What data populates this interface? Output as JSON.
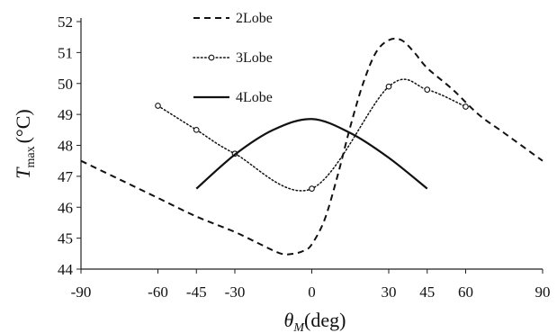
{
  "chart_data": {
    "type": "line",
    "xlim": [
      -90,
      90
    ],
    "ylim": [
      44,
      52
    ],
    "x_ticks": [
      -90,
      -60,
      -45,
      -30,
      0,
      30,
      45,
      60,
      90
    ],
    "x_tick_labels": [
      "-90",
      "-60",
      "-45",
      "-30",
      "0",
      "30",
      "45",
      "60",
      "90"
    ],
    "y_ticks": [
      44,
      45,
      46,
      47,
      48,
      49,
      50,
      51,
      52
    ],
    "y_tick_labels": [
      "44",
      "45",
      "46",
      "47",
      "48",
      "49",
      "50",
      "51",
      "52"
    ],
    "ylabel": {
      "main": "T",
      "sub": "max",
      "unit": "(°C)"
    },
    "xlabel": {
      "main": "θ",
      "sub": "M",
      "unit": "(deg)"
    },
    "grid": false,
    "legend_placement": "top-center",
    "series": [
      {
        "name": "2Lobe",
        "style": "dashed",
        "color": "#111111",
        "x": [
          -90,
          -75,
          -60,
          -45,
          -30,
          -20,
          -12,
          -7,
          -3,
          0,
          5,
          10,
          15,
          20,
          25,
          30,
          35,
          40,
          45,
          55,
          65,
          75,
          90
        ],
        "y": [
          47.5,
          46.9,
          46.3,
          45.7,
          45.2,
          44.8,
          44.5,
          44.5,
          44.6,
          44.8,
          45.6,
          47.0,
          48.6,
          50.0,
          51.0,
          51.4,
          51.4,
          51.0,
          50.5,
          49.8,
          49.0,
          48.4,
          47.5
        ]
      },
      {
        "name": "3Lobe",
        "style": "dotted",
        "color": "#111111",
        "marker": "circle",
        "x": [
          -60,
          -45,
          -30,
          0,
          30,
          45,
          60
        ],
        "y": [
          49.28,
          48.5,
          47.73,
          46.6,
          49.9,
          49.8,
          49.25
        ]
      },
      {
        "name": "4Lobe",
        "style": "solid",
        "color": "#111111",
        "x": [
          -45,
          -30,
          -15,
          0,
          15,
          30,
          45
        ],
        "y": [
          46.6,
          47.7,
          48.5,
          48.85,
          48.4,
          47.6,
          46.6
        ]
      }
    ]
  }
}
